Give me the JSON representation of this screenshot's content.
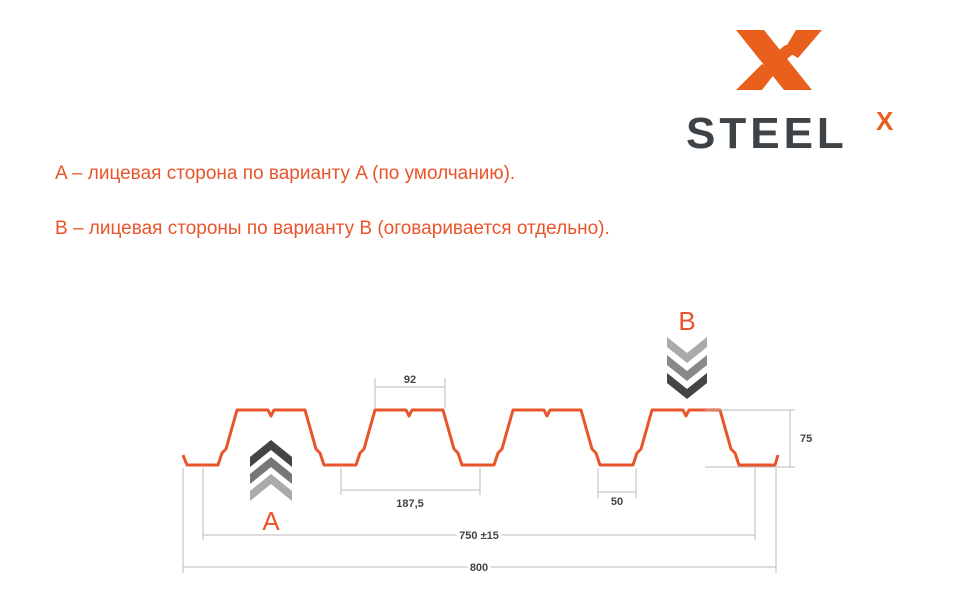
{
  "logo": {
    "text": "STEEL",
    "superscript": "X",
    "brand_color": "#e8601c",
    "text_color": "#3d4347"
  },
  "notes": [
    "A – лицевая сторона по варианту A (по умолчанию).",
    "B – лицевая стороны по варианту B (оговаривается отдельно)."
  ],
  "profile": {
    "color": "#e8552b",
    "side_a_label": "A",
    "side_b_label": "B",
    "dimensions": {
      "rib_top": "92",
      "pitch": "187,5",
      "bottom_flat": "50",
      "height": "75",
      "working_width": "750 ±15",
      "total_width": "800"
    }
  }
}
